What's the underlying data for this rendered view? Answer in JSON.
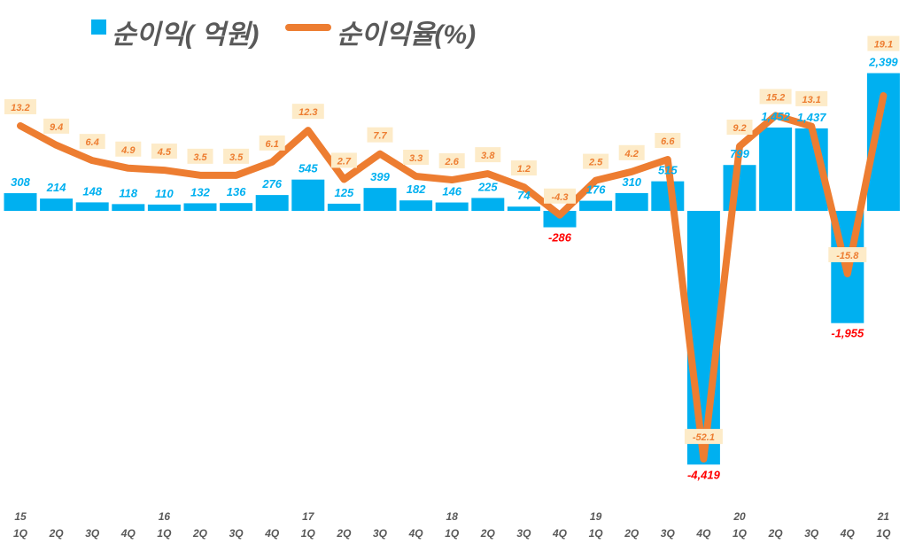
{
  "chart_data": {
    "type": "bar+line",
    "categories": [
      "1Q",
      "2Q",
      "3Q",
      "4Q",
      "1Q",
      "2Q",
      "3Q",
      "4Q",
      "1Q",
      "2Q",
      "3Q",
      "4Q",
      "1Q",
      "2Q",
      "3Q",
      "4Q",
      "1Q",
      "2Q",
      "3Q",
      "4Q",
      "1Q",
      "2Q",
      "3Q",
      "4Q",
      "1Q"
    ],
    "year_labels": [
      "15",
      "",
      "",
      "",
      "16",
      "",
      "",
      "",
      "17",
      "",
      "",
      "",
      "18",
      "",
      "",
      "",
      "19",
      "",
      "",
      "",
      "20",
      "",
      "",
      "",
      "21"
    ],
    "series": [
      {
        "name": "순이익( 억원)",
        "type": "bar",
        "color": "#00b0f0",
        "values": [
          308,
          214,
          148,
          118,
          110,
          132,
          136,
          276,
          545,
          125,
          399,
          182,
          146,
          225,
          74,
          -286,
          176,
          310,
          515,
          -4419,
          799,
          1452,
          1437,
          -1955,
          2399
        ],
        "labels": [
          "308",
          "214",
          "148",
          "118",
          "110",
          "132",
          "136",
          "276",
          "545",
          "125",
          "399",
          "182",
          "146",
          "225",
          "74",
          "-286",
          "176",
          "310",
          "515",
          "-4,419",
          "799",
          "1,452",
          "1,437",
          "-1,955",
          "2,399"
        ]
      },
      {
        "name": "순이익율(%)",
        "type": "line",
        "color": "#ed7d31",
        "values": [
          13.2,
          9.4,
          6.4,
          4.9,
          4.5,
          3.5,
          3.5,
          6.1,
          12.3,
          2.7,
          7.7,
          3.3,
          2.6,
          3.8,
          1.2,
          -4.3,
          2.5,
          4.2,
          6.6,
          -52.1,
          9.2,
          15.2,
          13.1,
          -15.8,
          19.1
        ],
        "labels": [
          "13.2",
          "9.4",
          "6.4",
          "4.9",
          "4.5",
          "3.5",
          "3.5",
          "6.1",
          "12.3",
          "2.7",
          "7.7",
          "3.3",
          "2.6",
          "3.8",
          "1.2",
          "-4.3",
          "2.5",
          "4.2",
          "6.6",
          "-52.1",
          "9.2",
          "15.2",
          "13.1",
          "-15.8",
          "19.1"
        ]
      }
    ],
    "negative_label_color": "#ff0000",
    "rate_label_bg": "#fdebc8",
    "grid": false,
    "legend_position": "top"
  }
}
